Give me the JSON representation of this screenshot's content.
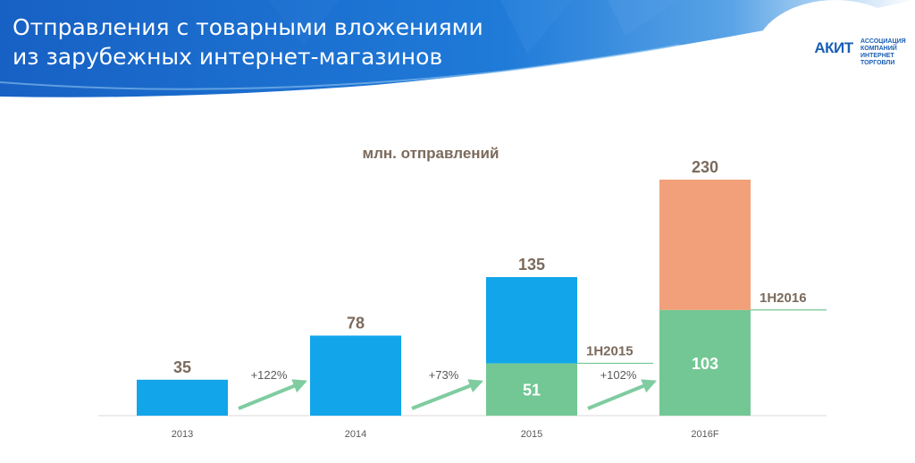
{
  "header": {
    "title_line1": "Отправления с товарными вложениями",
    "title_line2": "из зарубежных интернет-магазинов"
  },
  "logo": {
    "text": "АКИТ",
    "subtitle_lines": [
      "АССОЦИАЦИЯ",
      "КОМПАНИЙ",
      "ИНТЕРНЕТ",
      "ТОРГОВЛИ"
    ]
  },
  "colors": {
    "header_blue": "#1e6fcf",
    "bar_blue": "#12a5ea",
    "bar_green": "#73c794",
    "bar_orange": "#f1a07a",
    "arrow_green": "#7fcca0",
    "label_brown": "#7b6a5c"
  },
  "chart_data": {
    "type": "bar",
    "title": "млн. отправлений",
    "categories": [
      "2013",
      "2014",
      "2015",
      "2016F"
    ],
    "series": [
      {
        "name": "",
        "values": [
          35,
          78,
          51,
          103
        ]
      },
      {
        "name": "",
        "values": [
          null,
          null,
          84,
          127
        ]
      }
    ],
    "totals": [
      35,
      78,
      135,
      230
    ],
    "half_year_labels": [
      {
        "category": "2015",
        "text": "1H2015",
        "value": 51
      },
      {
        "category": "2016F",
        "text": "1H2016",
        "value": 103
      }
    ],
    "growth_labels": [
      "+122%",
      "+73%",
      "+102%"
    ],
    "ylim": [
      0,
      250
    ],
    "grid": false
  }
}
